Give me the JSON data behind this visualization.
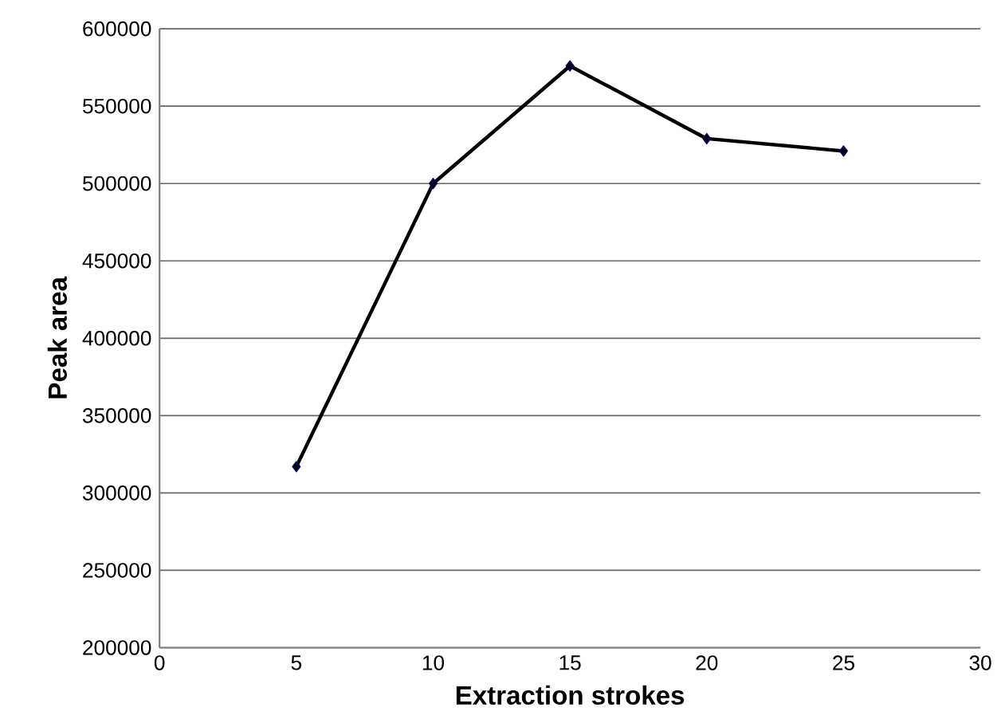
{
  "chart_data": {
    "type": "line",
    "xlabel": "Extraction strokes",
    "ylabel": "Peak area",
    "x": [
      5,
      10,
      15,
      20,
      25
    ],
    "series": [
      {
        "color": "#000000",
        "values": [
          317000,
          500000,
          576000,
          529000,
          521000
        ]
      }
    ],
    "xlim": [
      0,
      30
    ],
    "xticks": [
      0,
      5,
      10,
      15,
      20,
      25,
      30
    ],
    "ylim": [
      200000,
      600000
    ],
    "yticks": [
      200000,
      250000,
      300000,
      350000,
      400000,
      450000,
      500000,
      550000,
      600000
    ],
    "grid": "y",
    "marker": "diamond",
    "line_style": "solid"
  }
}
